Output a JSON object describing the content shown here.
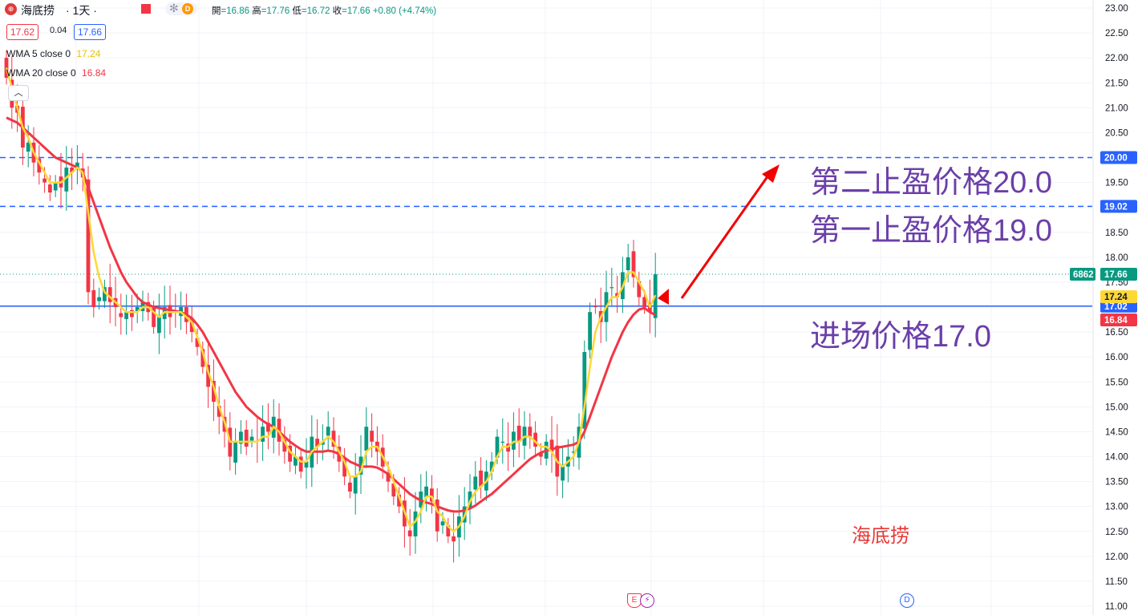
{
  "header": {
    "symbol": "海底捞",
    "interval": "· 1天 ·",
    "ohlc": [
      {
        "label": "開",
        "value": "=16.86",
        "color": "#089981"
      },
      {
        "label": "高",
        "value": "=17.76",
        "color": "#089981"
      },
      {
        "label": "低",
        "value": "=16.72",
        "color": "#089981"
      },
      {
        "label": "收",
        "value": "=17.66",
        "color": "#089981"
      }
    ],
    "change": "+0.80 (+4.74%)",
    "bid": "17.62",
    "spread": "0.04",
    "ask": "17.66"
  },
  "indicators": [
    {
      "label": "WMA 5 close 0",
      "value": "17.24",
      "color": "#fdd835"
    },
    {
      "label": "WMA 20 close 0",
      "value": "16.84",
      "color": "#f23645"
    }
  ],
  "annotations": {
    "tp2": "第二止盈价格20.0",
    "tp1": "第一止盈价格19.0",
    "entry": "进场价格17.0",
    "watermark": "海底捞"
  },
  "events": {
    "earnings": "E",
    "flash": "⚡",
    "dividend": "D"
  },
  "colors": {
    "up": "#089981",
    "down": "#f23645",
    "wma5": "#fdd835",
    "wma20": "#f23645",
    "line": "#2962ff",
    "annotation": "#6b3fa8"
  },
  "chart_data": {
    "type": "candlestick",
    "ylim": [
      11.0,
      23.0
    ],
    "yticks": [
      "23.00",
      "22.50",
      "22.00",
      "21.50",
      "21.00",
      "20.50",
      "20.00",
      "19.50",
      "19.00",
      "18.50",
      "18.00",
      "17.50",
      "17.00",
      "16.50",
      "16.00",
      "15.50",
      "15.00",
      "14.50",
      "14.00",
      "13.50",
      "13.00",
      "12.50",
      "12.00",
      "11.50",
      "11.00"
    ],
    "hlines": [
      {
        "value": 20.0,
        "label": "20.00",
        "style": "dashed",
        "color": "#2962ff"
      },
      {
        "value": 19.02,
        "label": "19.02",
        "style": "dashed",
        "color": "#2962ff"
      },
      {
        "value": 17.02,
        "label": "17.02",
        "style": "solid",
        "color": "#2962ff"
      }
    ],
    "price_labels": [
      {
        "value": 17.66,
        "label": "17.66",
        "color": "#089981",
        "volume": "6862"
      },
      {
        "value": 17.24,
        "label": "17.24",
        "color": "#fdd835"
      },
      {
        "value": 16.84,
        "label": "16.84",
        "color": "#f23645"
      }
    ],
    "last_price": 17.66,
    "closes": [
      21.6,
      21.0,
      20.9,
      20.2,
      20.3,
      19.9,
      19.7,
      19.5,
      19.3,
      19.5,
      19.4,
      19.8,
      19.7,
      19.9,
      19.6,
      17.3,
      17.0,
      17.2,
      17.4,
      17.1,
      17.0,
      16.8,
      16.9,
      16.8,
      17.0,
      17.1,
      16.9,
      16.6,
      16.8,
      17.0,
      16.8,
      16.9,
      17.0,
      16.7,
      16.5,
      16.2,
      15.8,
      15.4,
      15.1,
      14.8,
      14.5,
      14.0,
      14.3,
      14.5,
      14.2,
      14.4,
      14.3,
      14.6,
      14.5,
      14.8,
      14.3,
      14.1,
      13.9,
      14.0,
      13.7,
      13.9,
      14.4,
      14.2,
      14.3,
      14.6,
      14.2,
      13.9,
      13.6,
      13.3,
      13.6,
      14.0,
      14.6,
      14.3,
      14.1,
      13.8,
      13.5,
      13.2,
      13.0,
      12.6,
      12.4,
      12.9,
      13.3,
      13.4,
      13.1,
      12.5,
      12.7,
      12.4,
      12.3,
      12.8,
      13.0,
      13.3,
      13.6,
      13.4,
      13.7,
      13.9,
      14.4,
      14.3,
      14.1,
      14.5,
      14.3,
      14.6,
      14.4,
      14.2,
      14.0,
      14.3,
      14.1,
      13.6,
      13.8,
      14.0,
      14.1,
      14.6,
      16.1,
      16.9,
      17.0,
      16.7,
      17.3,
      17.4,
      17.2,
      17.7,
      18.0,
      17.6,
      17.2,
      17.0,
      16.9,
      17.66
    ],
    "wma5": [
      21.8,
      21.4,
      21.0,
      20.6,
      20.4,
      20.1,
      19.9,
      19.7,
      19.5,
      19.5,
      19.5,
      19.6,
      19.7,
      19.8,
      19.7,
      18.9,
      18.1,
      17.6,
      17.3,
      17.2,
      17.1,
      17.0,
      16.9,
      16.9,
      16.9,
      17.0,
      17.0,
      16.9,
      16.8,
      16.9,
      16.9,
      16.9,
      16.9,
      16.8,
      16.7,
      16.4,
      16.1,
      15.7,
      15.4,
      15.0,
      14.7,
      14.3,
      14.3,
      14.3,
      14.3,
      14.3,
      14.3,
      14.4,
      14.4,
      14.6,
      14.5,
      14.3,
      14.1,
      14.0,
      13.9,
      13.9,
      14.1,
      14.2,
      14.3,
      14.4,
      14.3,
      14.1,
      13.9,
      13.6,
      13.6,
      13.7,
      14.1,
      14.2,
      14.2,
      14.0,
      13.8,
      13.5,
      13.2,
      12.9,
      12.6,
      12.7,
      12.9,
      13.2,
      13.2,
      12.9,
      12.8,
      12.6,
      12.5,
      12.6,
      12.8,
      13.1,
      13.3,
      13.4,
      13.5,
      13.7,
      14.0,
      14.2,
      14.2,
      14.3,
      14.3,
      14.4,
      14.4,
      14.3,
      14.2,
      14.2,
      14.1,
      13.9,
      13.8,
      13.9,
      14.0,
      14.3,
      15.0,
      15.8,
      16.5,
      16.8,
      17.0,
      17.2,
      17.2,
      17.4,
      17.7,
      17.7,
      17.5,
      17.3,
      17.0,
      17.24
    ],
    "wma20": [
      20.8,
      20.75,
      20.7,
      20.6,
      20.5,
      20.4,
      20.3,
      20.2,
      20.1,
      20.0,
      19.95,
      19.9,
      19.85,
      19.8,
      19.7,
      19.4,
      19.1,
      18.8,
      18.5,
      18.2,
      17.95,
      17.7,
      17.5,
      17.35,
      17.2,
      17.1,
      17.05,
      17.0,
      16.98,
      16.96,
      16.94,
      16.92,
      16.9,
      16.85,
      16.78,
      16.65,
      16.5,
      16.3,
      16.1,
      15.9,
      15.7,
      15.5,
      15.3,
      15.15,
      15.0,
      14.9,
      14.8,
      14.72,
      14.65,
      14.6,
      14.5,
      14.4,
      14.3,
      14.22,
      14.15,
      14.1,
      14.1,
      14.1,
      14.1,
      14.12,
      14.1,
      14.05,
      13.98,
      13.9,
      13.85,
      13.8,
      13.8,
      13.8,
      13.78,
      13.72,
      13.65,
      13.55,
      13.45,
      13.35,
      13.25,
      13.18,
      13.12,
      13.08,
      13.05,
      13.0,
      12.96,
      12.92,
      12.9,
      12.9,
      12.92,
      12.96,
      13.02,
      13.1,
      13.18,
      13.25,
      13.35,
      13.45,
      13.55,
      13.65,
      13.75,
      13.85,
      13.95,
      14.02,
      14.08,
      14.12,
      14.15,
      14.18,
      14.2,
      14.22,
      14.24,
      14.3,
      14.5,
      14.8,
      15.1,
      15.4,
      15.7,
      16.0,
      16.25,
      16.5,
      16.7,
      16.85,
      16.95,
      16.98,
      16.9,
      16.84
    ]
  }
}
